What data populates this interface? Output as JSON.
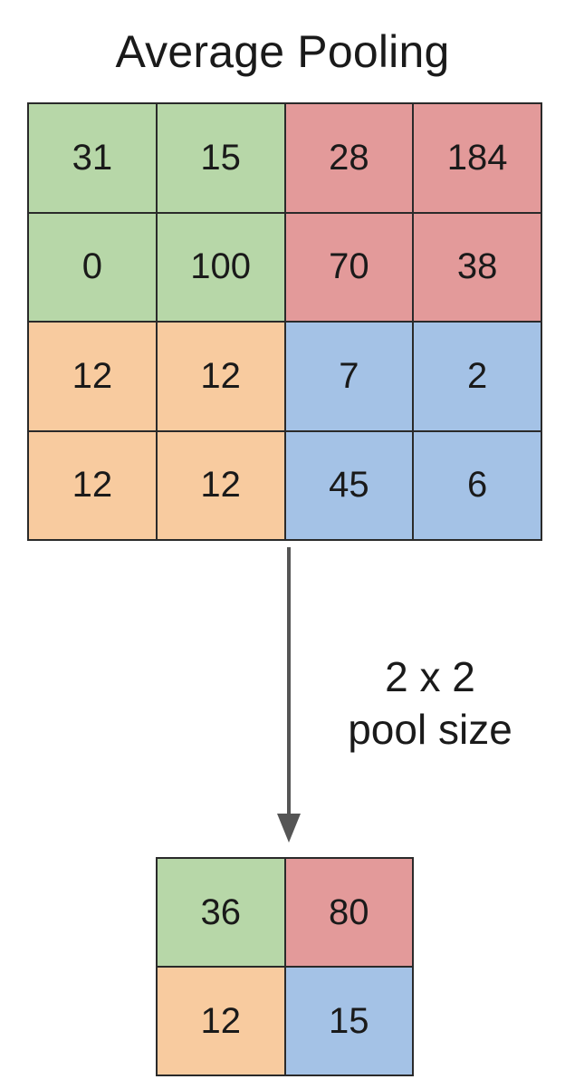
{
  "title": "Average Pooling",
  "input_grid": {
    "rows": [
      [
        "31",
        "15",
        "28",
        "184"
      ],
      [
        "0",
        "100",
        "70",
        "38"
      ],
      [
        "12",
        "12",
        "7",
        "2"
      ],
      [
        "12",
        "12",
        "45",
        "6"
      ]
    ]
  },
  "pool_label": {
    "line1": "2 x 2",
    "line2": "pool size"
  },
  "output_grid": {
    "rows": [
      [
        "36",
        "80"
      ],
      [
        "12",
        "15"
      ]
    ]
  },
  "colors": {
    "top_left": "#b7d7a8",
    "top_right": "#e39a9a",
    "bottom_left": "#f8cb9f",
    "bottom_right": "#a4c2e6",
    "grid_border": "#2a2a2a",
    "arrow": "#555555"
  }
}
